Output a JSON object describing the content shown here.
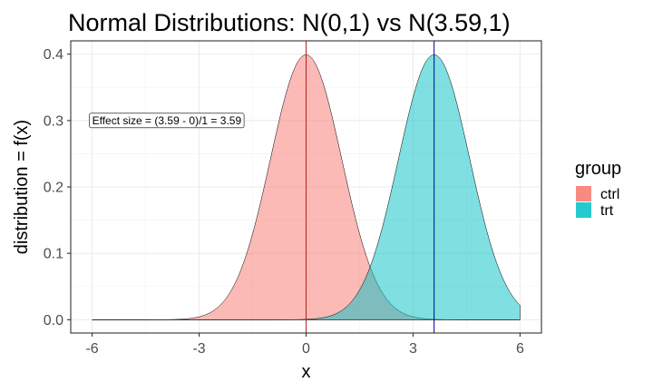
{
  "chart_data": {
    "type": "area",
    "title": "Normal Distributions: N(0,1) vs N(3.59,1)",
    "xlabel": "x",
    "ylabel": "distribution = f(x)",
    "xlim": [
      -6.6,
      6.6
    ],
    "ylim": [
      -0.02,
      0.42
    ],
    "x_ticks": [
      -6,
      -3,
      0,
      3,
      6
    ],
    "x_tick_labels": [
      "-6",
      "-3",
      "0",
      "3",
      "6"
    ],
    "y_ticks": [
      0.0,
      0.1,
      0.2,
      0.3,
      0.4
    ],
    "y_tick_labels": [
      "0.0",
      "0.1",
      "0.2",
      "0.3",
      "0.4"
    ],
    "grid": true,
    "legend": {
      "title": "group",
      "position": "right"
    },
    "series": [
      {
        "name": "ctrl",
        "distribution": "normal",
        "mean": 0,
        "sd": 1,
        "x_range": [
          -6,
          6
        ],
        "color": "#F8766D",
        "vline_color": "#B22222"
      },
      {
        "name": "trt",
        "distribution": "normal",
        "mean": 3.59,
        "sd": 1,
        "x_range": [
          -6,
          6
        ],
        "color": "#00BFC4",
        "vline_color": "#00008B"
      }
    ],
    "annotations": [
      {
        "text": "Effect size = (3.59 - 0)/1 = 3.59",
        "x": -6,
        "y": 0.3
      }
    ]
  }
}
